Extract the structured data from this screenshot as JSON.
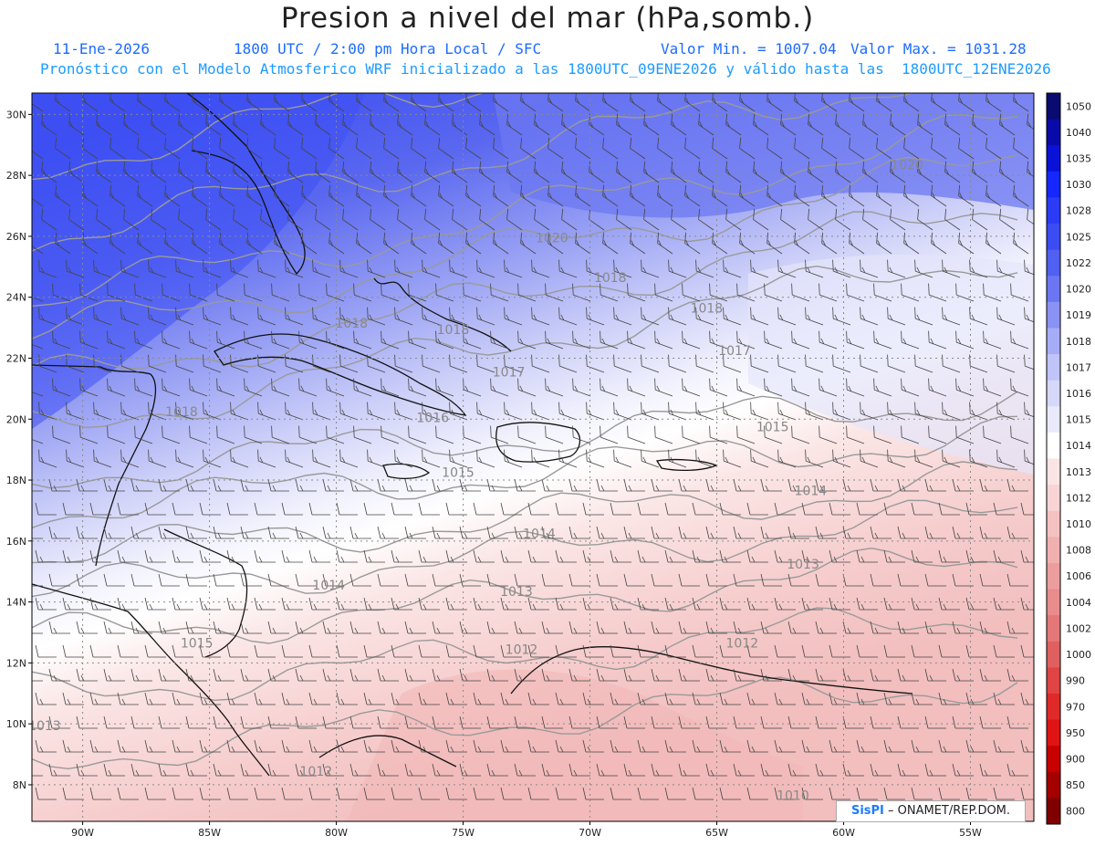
{
  "header": {
    "title": "Presion a nivel del mar (hPa,somb.)",
    "date": "11-Ene-2026",
    "time": "1800 UTC / 2:00 pm Hora Local / SFC",
    "min_label": "Valor Min. = 1007.04",
    "max_label": "Valor Max. = 1031.28",
    "model_line": "Pronóstico con el Modelo Atmosferico WRF inicializado a las 1800UTC_09ENE2026 y válido hasta las  1800UTC_12ENE2026"
  },
  "map": {
    "lat_labels": [
      "30N",
      "28N",
      "26N",
      "24N",
      "22N",
      "20N",
      "18N",
      "16N",
      "14N",
      "12N",
      "10N",
      "8N"
    ],
    "lon_labels": [
      "90W",
      "85W",
      "80W",
      "75W",
      "70W",
      "65W",
      "60W",
      "55W"
    ],
    "isobar_labels": [
      {
        "text": "1020",
        "lon": -57.5,
        "lat": 28.2
      },
      {
        "text": "1020",
        "lon": -71.5,
        "lat": 25.8
      },
      {
        "text": "1018",
        "lon": -69.2,
        "lat": 24.5
      },
      {
        "text": "1018",
        "lon": -75.4,
        "lat": 22.8
      },
      {
        "text": "1018",
        "lon": -79.4,
        "lat": 23.0
      },
      {
        "text": "1018",
        "lon": -65.4,
        "lat": 23.5
      },
      {
        "text": "1017",
        "lon": -64.3,
        "lat": 22.1
      },
      {
        "text": "1017",
        "lon": -73.2,
        "lat": 21.4
      },
      {
        "text": "1018",
        "lon": -86.1,
        "lat": 20.1
      },
      {
        "text": "1016",
        "lon": -76.2,
        "lat": 19.9
      },
      {
        "text": "1015",
        "lon": -62.8,
        "lat": 19.6
      },
      {
        "text": "1015",
        "lon": -75.2,
        "lat": 18.1
      },
      {
        "text": "1014",
        "lon": -61.3,
        "lat": 17.5
      },
      {
        "text": "1014",
        "lon": -72.0,
        "lat": 16.1
      },
      {
        "text": "1013",
        "lon": -61.6,
        "lat": 15.1
      },
      {
        "text": "1014",
        "lon": -80.3,
        "lat": 14.4
      },
      {
        "text": "1013",
        "lon": -72.9,
        "lat": 14.2
      },
      {
        "text": "1015",
        "lon": -85.5,
        "lat": 12.5
      },
      {
        "text": "1012",
        "lon": -72.7,
        "lat": 12.3
      },
      {
        "text": "1012",
        "lon": -64.0,
        "lat": 12.5
      },
      {
        "text": "1013",
        "lon": -91.5,
        "lat": 9.8
      },
      {
        "text": "1012",
        "lon": -80.8,
        "lat": 8.3
      },
      {
        "text": "1010",
        "lon": -62.0,
        "lat": 7.5
      }
    ]
  },
  "colorbar": {
    "labels": [
      "1050",
      "1040",
      "1035",
      "1030",
      "1028",
      "1025",
      "1022",
      "1020",
      "1019",
      "1018",
      "1017",
      "1016",
      "1015",
      "1014",
      "1013",
      "1012",
      "1010",
      "1008",
      "1006",
      "1004",
      "1002",
      "1000",
      "990",
      "970",
      "950",
      "900",
      "850",
      "800"
    ],
    "colors": [
      "#0a0a70",
      "#0a0aa8",
      "#0a12d8",
      "#1428ff",
      "#2c3cf6",
      "#3a4cf2",
      "#5060f0",
      "#6a76f2",
      "#8a92f4",
      "#a6acf6",
      "#c0c4f8",
      "#d6d8fa",
      "#e8eafc",
      "#ffffff",
      "#fbe4e4",
      "#f8d4d4",
      "#f4c2c2",
      "#f0b0b0",
      "#ec9e9e",
      "#e88c8c",
      "#e47878",
      "#e06060",
      "#e04444",
      "#e02a2a",
      "#e01414",
      "#c80000",
      "#a40000",
      "#800000"
    ]
  },
  "credit": {
    "logo": "SisPI",
    "text": "– ONAMET/REP.DOM."
  }
}
